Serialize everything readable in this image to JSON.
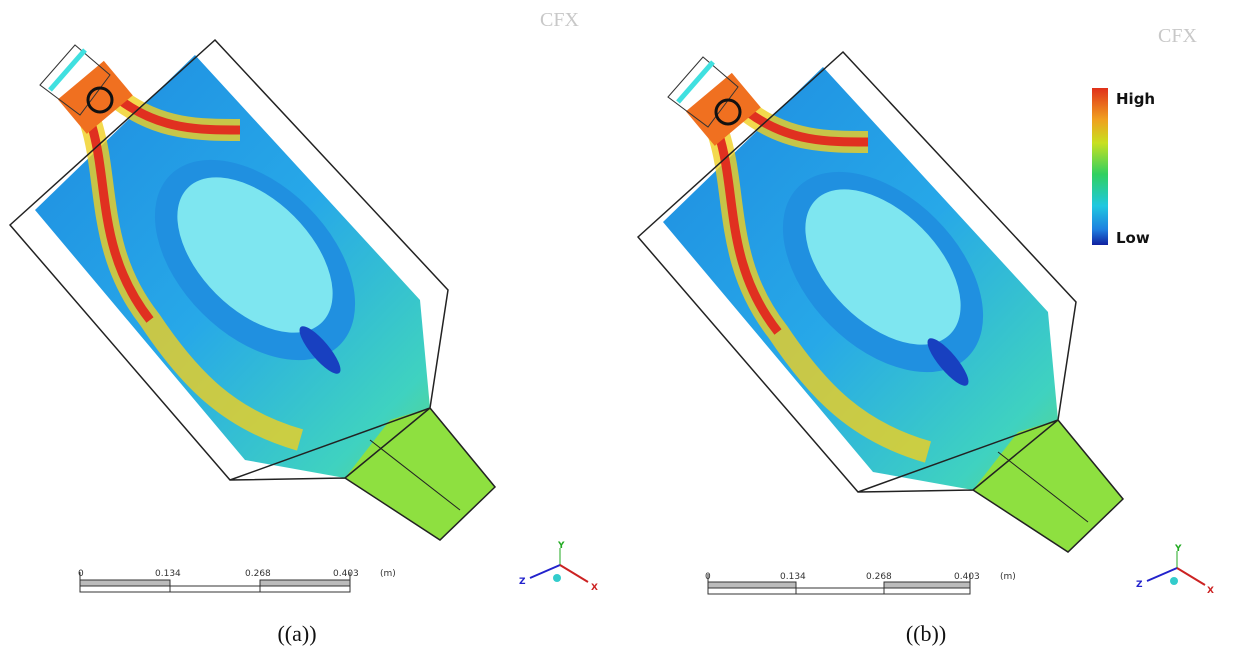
{
  "panels": [
    {
      "watermark": "CFX",
      "scale_bar": {
        "ticks": [
          "0",
          "0.134",
          "0.268",
          "0.403"
        ],
        "unit": "(m)"
      },
      "axes": {
        "y": "Y",
        "z": "Z",
        "x": "X"
      },
      "caption": "((a))"
    },
    {
      "watermark": "CFX",
      "scale_bar": {
        "ticks": [
          "0",
          "0.134",
          "0.268",
          "0.403"
        ],
        "unit": "(m)"
      },
      "axes": {
        "y": "Y",
        "z": "Z",
        "x": "X"
      },
      "caption": "((b))"
    }
  ],
  "legend": {
    "high": "High",
    "low": "Low"
  }
}
